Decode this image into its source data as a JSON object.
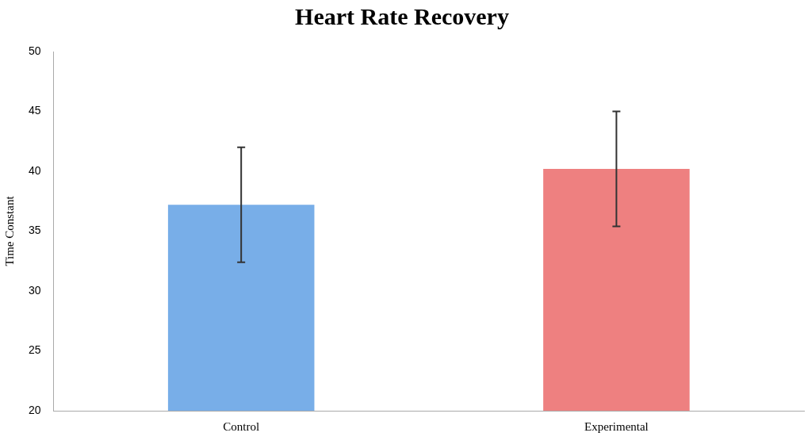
{
  "chart_data": {
    "type": "bar",
    "title": "Heart Rate Recovery",
    "ylabel": "Time Constant",
    "categories": [
      "Control",
      "Experimental"
    ],
    "values": [
      37.2,
      40.2
    ],
    "errors": [
      [
        32.4,
        42.0
      ],
      [
        35.4,
        45.0
      ]
    ],
    "colors": [
      "#78aee8",
      "#ee8080"
    ],
    "ylim": [
      20,
      50
    ],
    "yticks": [
      20,
      25,
      30,
      35,
      40,
      45,
      50
    ],
    "grid": false,
    "legend": false
  }
}
